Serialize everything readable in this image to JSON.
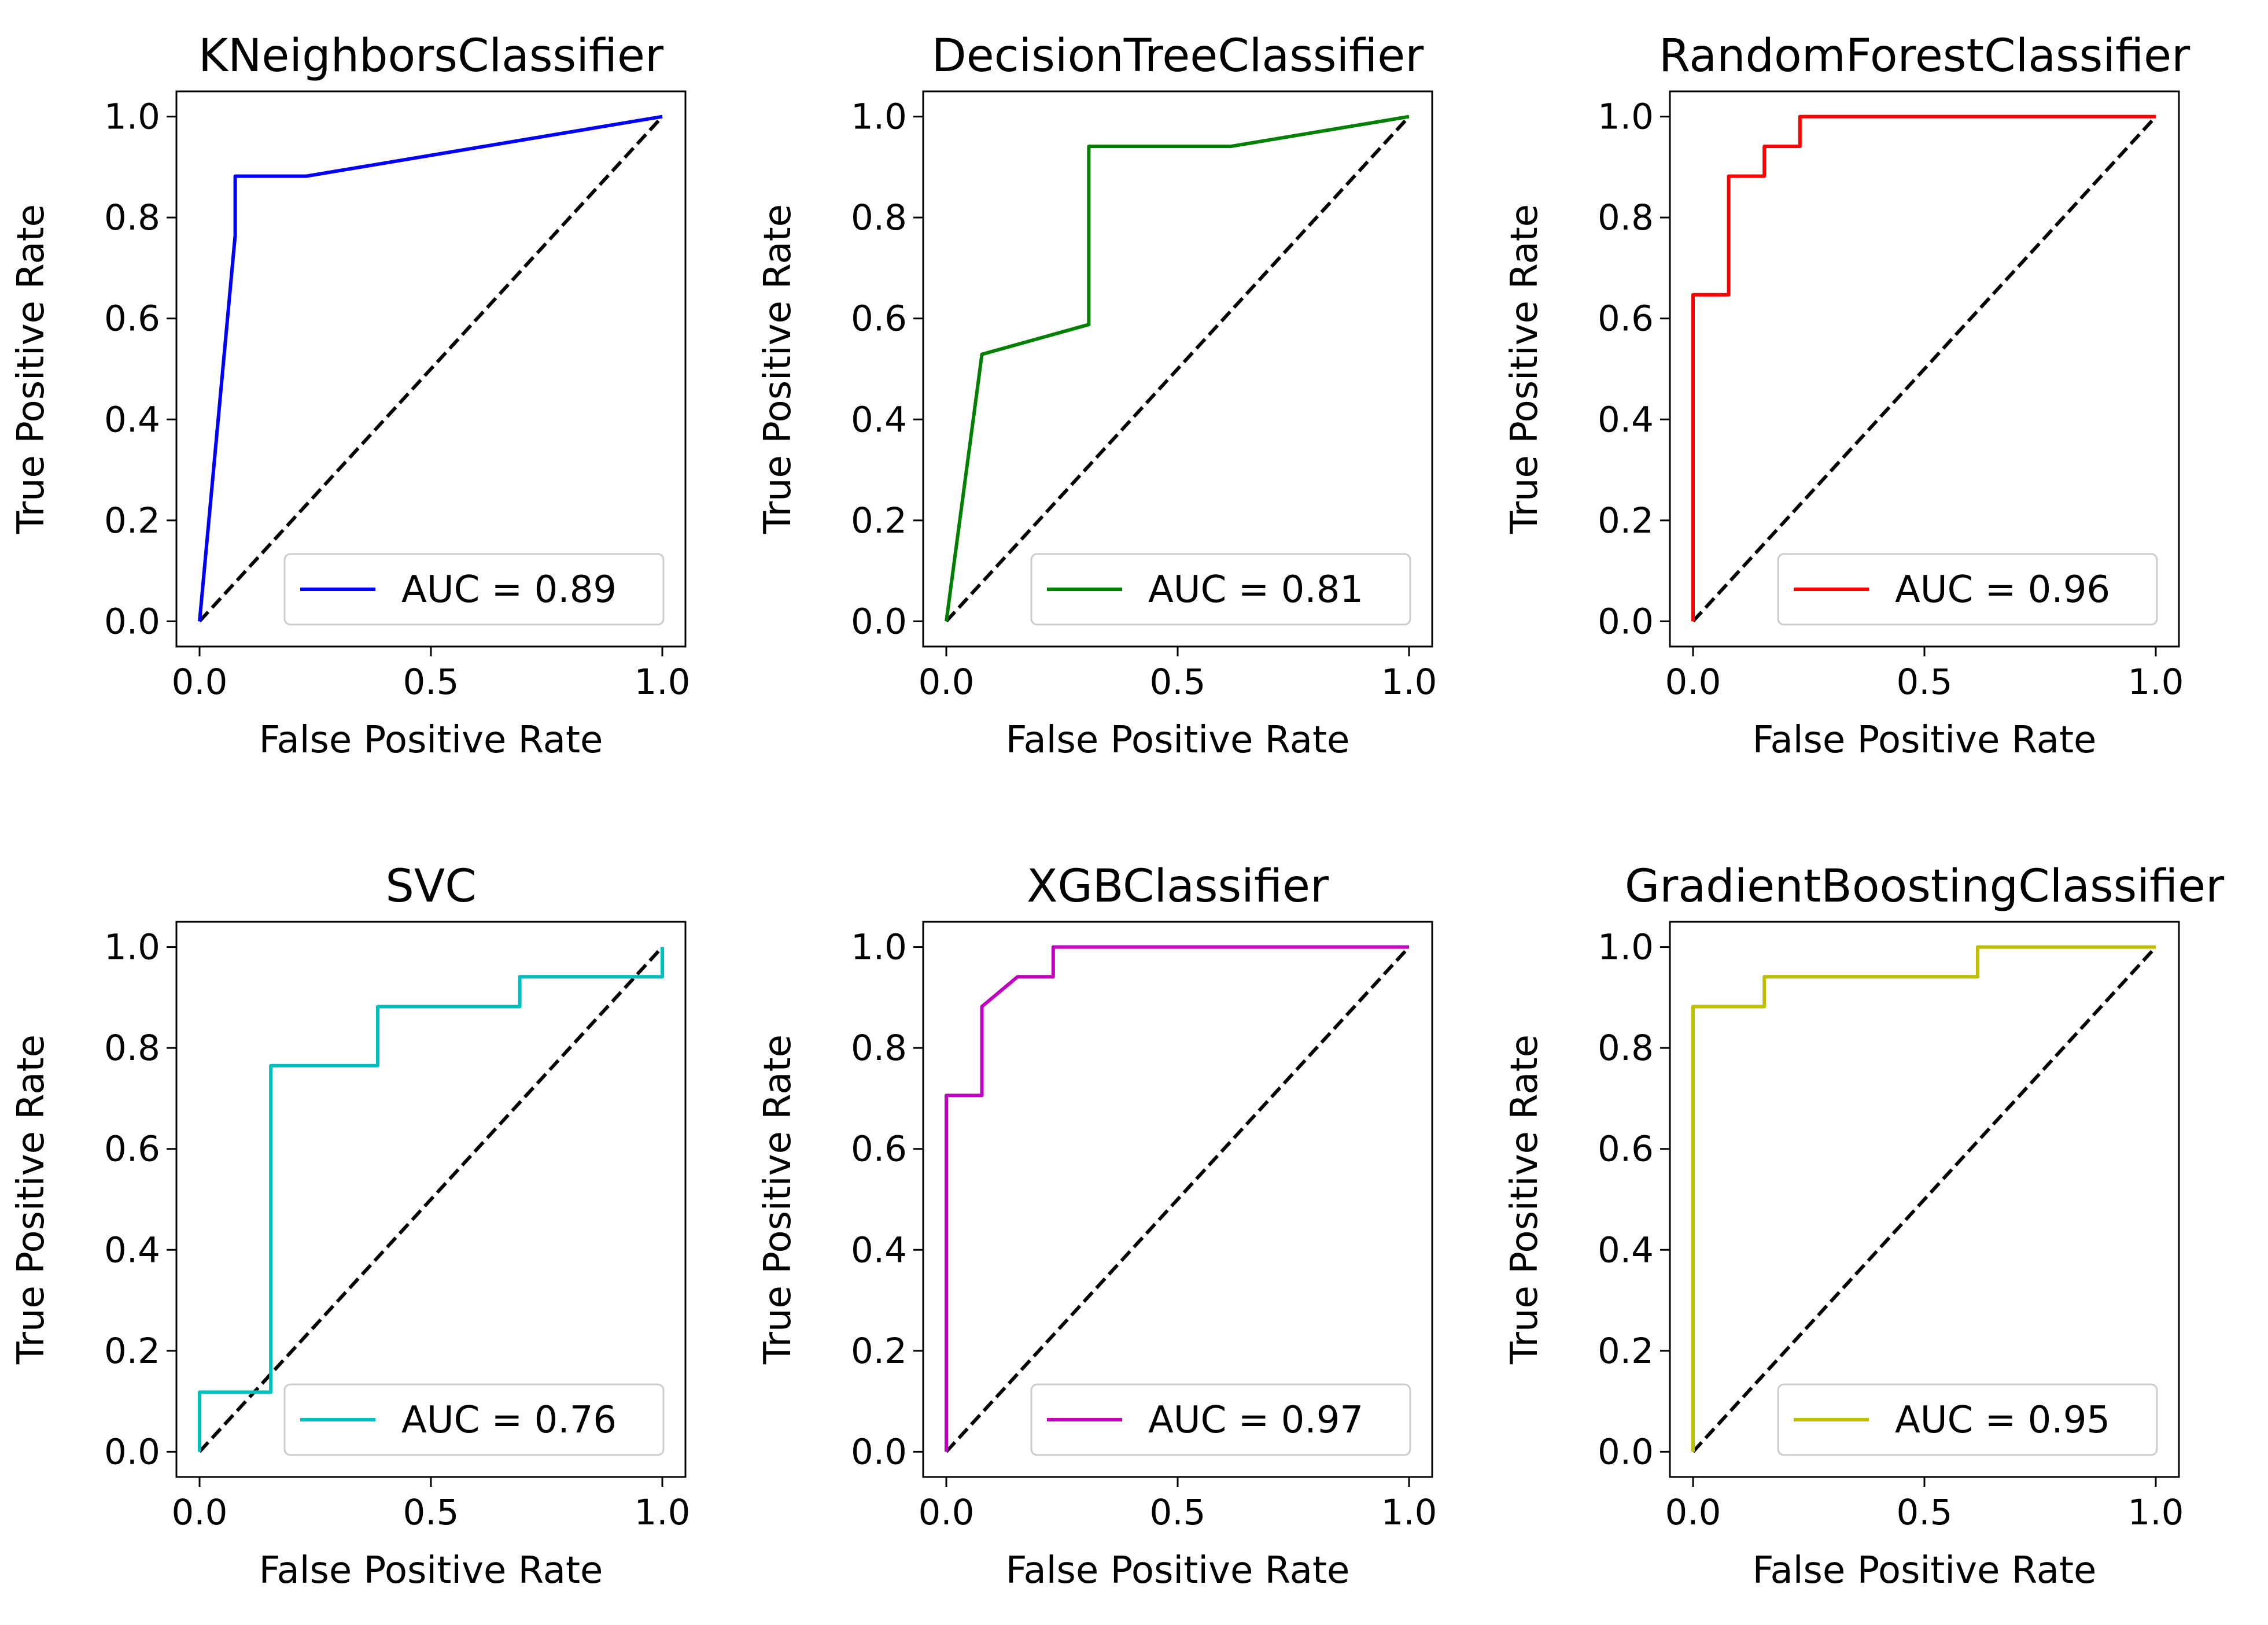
{
  "chart_data": [
    {
      "type": "line",
      "title": "KNeighborsClassifier",
      "xlabel": "False Positive Rate",
      "ylabel": "True Positive Rate",
      "xlim": [
        0.0,
        1.0
      ],
      "ylim": [
        0.0,
        1.0
      ],
      "x_ticks": [
        "0.0",
        "0.5",
        "1.0"
      ],
      "y_ticks": [
        "0.0",
        "0.2",
        "0.4",
        "0.6",
        "0.8",
        "1.0"
      ],
      "color": "#0000ff",
      "legend": "AUC = 0.89",
      "legend_position": "lower right",
      "grid": false,
      "series": [
        {
          "x": [
            0.0,
            0.077,
            0.077,
            0.231,
            1.0
          ],
          "y": [
            0.0,
            0.765,
            0.882,
            0.882,
            1.0
          ]
        }
      ],
      "reference_line": {
        "x": [
          0,
          1
        ],
        "y": [
          0,
          1
        ],
        "color": "#000000",
        "style": "dashed"
      }
    },
    {
      "type": "line",
      "title": "DecisionTreeClassifier",
      "xlabel": "False Positive Rate",
      "ylabel": "True Positive Rate",
      "xlim": [
        0.0,
        1.0
      ],
      "ylim": [
        0.0,
        1.0
      ],
      "x_ticks": [
        "0.0",
        "0.5",
        "1.0"
      ],
      "y_ticks": [
        "0.0",
        "0.2",
        "0.4",
        "0.6",
        "0.8",
        "1.0"
      ],
      "color": "#008000",
      "legend": "AUC = 0.81",
      "legend_position": "lower right",
      "grid": false,
      "series": [
        {
          "x": [
            0.0,
            0.077,
            0.308,
            0.308,
            0.615,
            1.0
          ],
          "y": [
            0.0,
            0.529,
            0.588,
            0.941,
            0.941,
            1.0
          ]
        }
      ],
      "reference_line": {
        "x": [
          0,
          1
        ],
        "y": [
          0,
          1
        ],
        "color": "#000000",
        "style": "dashed"
      }
    },
    {
      "type": "line",
      "title": "RandomForestClassifier",
      "xlabel": "False Positive Rate",
      "ylabel": "True Positive Rate",
      "xlim": [
        0.0,
        1.0
      ],
      "ylim": [
        0.0,
        1.0
      ],
      "x_ticks": [
        "0.0",
        "0.5",
        "1.0"
      ],
      "y_ticks": [
        "0.0",
        "0.2",
        "0.4",
        "0.6",
        "0.8",
        "1.0"
      ],
      "color": "#ff0000",
      "legend": "AUC = 0.96",
      "legend_position": "lower right",
      "grid": false,
      "series": [
        {
          "x": [
            0.0,
            0.0,
            0.077,
            0.077,
            0.154,
            0.154,
            0.231,
            0.231,
            1.0
          ],
          "y": [
            0.0,
            0.647,
            0.647,
            0.882,
            0.882,
            0.941,
            0.941,
            1.0,
            1.0
          ]
        }
      ],
      "reference_line": {
        "x": [
          0,
          1
        ],
        "y": [
          0,
          1
        ],
        "color": "#000000",
        "style": "dashed"
      }
    },
    {
      "type": "line",
      "title": "SVC",
      "xlabel": "False Positive Rate",
      "ylabel": "True Positive Rate",
      "xlim": [
        0.0,
        1.0
      ],
      "ylim": [
        0.0,
        1.0
      ],
      "x_ticks": [
        "0.0",
        "0.5",
        "1.0"
      ],
      "y_ticks": [
        "0.0",
        "0.2",
        "0.4",
        "0.6",
        "0.8",
        "1.0"
      ],
      "color": "#00bfbf",
      "legend": "AUC = 0.76",
      "legend_position": "lower right",
      "grid": false,
      "series": [
        {
          "x": [
            0.0,
            0.0,
            0.154,
            0.154,
            0.385,
            0.385,
            0.692,
            0.692,
            1.0,
            1.0
          ],
          "y": [
            0.0,
            0.118,
            0.118,
            0.765,
            0.765,
            0.882,
            0.882,
            0.941,
            0.941,
            1.0
          ]
        }
      ],
      "reference_line": {
        "x": [
          0,
          1
        ],
        "y": [
          0,
          1
        ],
        "color": "#000000",
        "style": "dashed"
      }
    },
    {
      "type": "line",
      "title": "XGBClassifier",
      "xlabel": "False Positive Rate",
      "ylabel": "True Positive Rate",
      "xlim": [
        0.0,
        1.0
      ],
      "ylim": [
        0.0,
        1.0
      ],
      "x_ticks": [
        "0.0",
        "0.5",
        "1.0"
      ],
      "y_ticks": [
        "0.0",
        "0.2",
        "0.4",
        "0.6",
        "0.8",
        "1.0"
      ],
      "color": "#bf00bf",
      "legend": "AUC = 0.97",
      "legend_position": "lower right",
      "grid": false,
      "series": [
        {
          "x": [
            0.0,
            0.0,
            0.077,
            0.077,
            0.154,
            0.231,
            0.231,
            1.0
          ],
          "y": [
            0.0,
            0.706,
            0.706,
            0.882,
            0.941,
            0.941,
            1.0,
            1.0
          ]
        }
      ],
      "reference_line": {
        "x": [
          0,
          1
        ],
        "y": [
          0,
          1
        ],
        "color": "#000000",
        "style": "dashed"
      }
    },
    {
      "type": "line",
      "title": "GradientBoostingClassifier",
      "xlabel": "False Positive Rate",
      "ylabel": "True Positive Rate",
      "xlim": [
        0.0,
        1.0
      ],
      "ylim": [
        0.0,
        1.0
      ],
      "x_ticks": [
        "0.0",
        "0.5",
        "1.0"
      ],
      "y_ticks": [
        "0.0",
        "0.2",
        "0.4",
        "0.6",
        "0.8",
        "1.0"
      ],
      "color": "#bfbf00",
      "legend": "AUC = 0.95",
      "legend_position": "lower right",
      "grid": false,
      "series": [
        {
          "x": [
            0.0,
            0.0,
            0.154,
            0.154,
            0.615,
            0.615,
            1.0
          ],
          "y": [
            0.0,
            0.882,
            0.882,
            0.941,
            0.941,
            1.0,
            1.0
          ]
        }
      ],
      "reference_line": {
        "x": [
          0,
          1
        ],
        "y": [
          0,
          1
        ],
        "color": "#000000",
        "style": "dashed"
      }
    }
  ]
}
